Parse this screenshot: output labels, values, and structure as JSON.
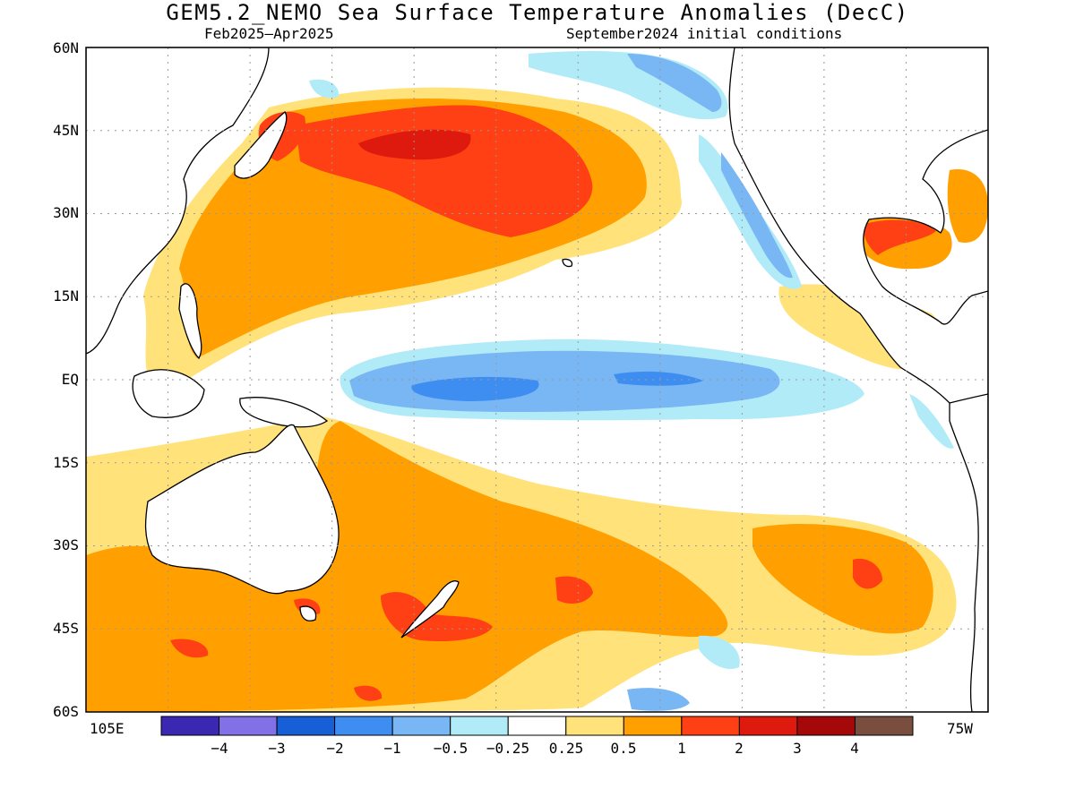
{
  "title": "GEM5.2_NEMO Sea Surface Temperature Anomalies (DecC)",
  "subtitle_left": "Feb2025–Apr2025",
  "subtitle_right": "September2024 initial conditions",
  "lat_labels": [
    "60N",
    "45N",
    "30N",
    "15N",
    "EQ",
    "15S",
    "30S",
    "45S",
    "60S"
  ],
  "lon_labels": {
    "west": "105E",
    "east": "75W"
  },
  "colorbar": {
    "colors": [
      "#3b28b2",
      "#8271e6",
      "#165fd6",
      "#3e8ef2",
      "#79b6f4",
      "#b0ebf7",
      "#ffffff",
      "#ffe27a",
      "#ffa000",
      "#ff3f14",
      "#dd1a0d",
      "#a40808",
      "#7a4e3e"
    ],
    "tick_labels": [
      "−4",
      "−3",
      "−2",
      "−1",
      "−0.5",
      "−0.25",
      "0.25",
      "0.5",
      "1",
      "2",
      "3",
      "4"
    ]
  },
  "map_colors": {
    "pale_yellow": "#ffe27a",
    "orange": "#ffa000",
    "red_orange": "#ff3f14",
    "red": "#dd1a0d",
    "pale_cyan": "#b0ebf7",
    "light_blue": "#79b6f4",
    "blue": "#3e8ef2",
    "land": "#ffffff",
    "coast": "#000000",
    "grid": "#999999"
  }
}
